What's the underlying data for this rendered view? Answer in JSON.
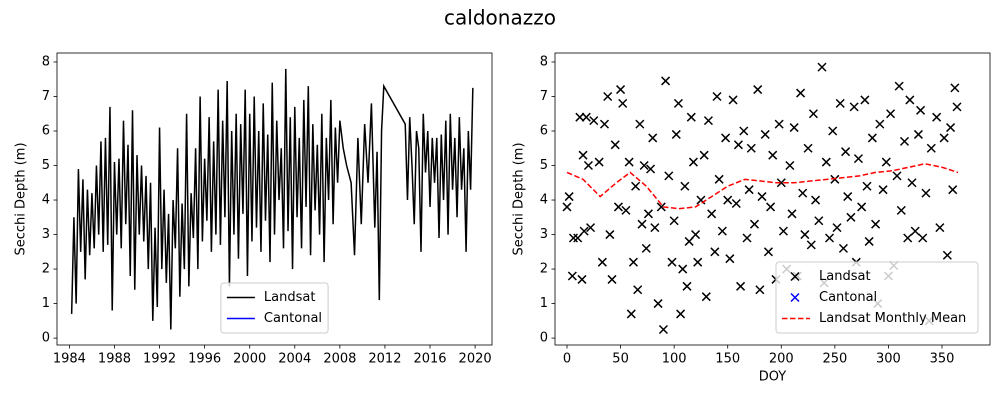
{
  "title": "caldonazzo",
  "chart_data": [
    {
      "type": "line",
      "ylabel": "Secchi Depth (m)",
      "xlim": [
        1982.9,
        2021.5
      ],
      "ylim": [
        -0.2,
        8.26
      ],
      "xticks": [
        1984,
        1988,
        1992,
        1996,
        2000,
        2004,
        2008,
        2012,
        2016,
        2020
      ],
      "yticks": [
        0,
        1,
        2,
        3,
        4,
        5,
        6,
        7,
        8
      ],
      "legend": "lower center",
      "series": [
        {
          "name": "Landsat",
          "color": "#000000",
          "x": [
            1984.2,
            1984.4,
            1984.6,
            1984.8,
            1985.0,
            1985.2,
            1985.4,
            1985.6,
            1985.8,
            1986.0,
            1986.2,
            1986.4,
            1986.6,
            1986.8,
            1987.0,
            1987.2,
            1987.4,
            1987.6,
            1987.8,
            1988.0,
            1988.2,
            1988.4,
            1988.6,
            1988.8,
            1989.0,
            1989.2,
            1989.4,
            1989.6,
            1989.8,
            1990.0,
            1990.2,
            1990.4,
            1990.6,
            1990.8,
            1991.0,
            1991.2,
            1991.4,
            1991.6,
            1991.8,
            1992.0,
            1992.2,
            1992.4,
            1992.6,
            1992.8,
            1993.0,
            1993.2,
            1993.4,
            1993.6,
            1993.8,
            1994.0,
            1994.2,
            1994.4,
            1994.6,
            1994.8,
            1995.0,
            1995.2,
            1995.4,
            1995.6,
            1995.8,
            1996.0,
            1996.2,
            1996.4,
            1996.6,
            1996.8,
            1997.0,
            1997.2,
            1997.4,
            1997.6,
            1997.8,
            1998.0,
            1998.2,
            1998.4,
            1998.6,
            1998.8,
            1999.0,
            1999.2,
            1999.4,
            1999.6,
            1999.8,
            2000.0,
            2000.2,
            2000.4,
            2000.6,
            2000.8,
            2001.0,
            2001.2,
            2001.4,
            2001.6,
            2001.8,
            2002.0,
            2002.2,
            2002.4,
            2002.6,
            2002.8,
            2003.0,
            2003.2,
            2003.4,
            2003.6,
            2003.8,
            2004.0,
            2004.2,
            2004.4,
            2004.6,
            2004.8,
            2005.0,
            2005.2,
            2005.4,
            2005.6,
            2005.8,
            2006.0,
            2006.2,
            2006.4,
            2006.6,
            2006.8,
            2007.0,
            2007.2,
            2007.4,
            2007.6,
            2007.8,
            2008.0,
            2008.3,
            2008.6,
            2009.0,
            2009.3,
            2009.6,
            2009.9,
            2010.2,
            2010.5,
            2010.8,
            2011.1,
            2011.3,
            2011.5,
            2011.7,
            2011.9,
            2013.8,
            2014.0,
            2014.2,
            2014.4,
            2014.6,
            2014.8,
            2015.0,
            2015.2,
            2015.4,
            2015.6,
            2015.8,
            2016.0,
            2016.2,
            2016.4,
            2016.6,
            2016.8,
            2017.0,
            2017.2,
            2017.4,
            2017.6,
            2017.8,
            2018.0,
            2018.2,
            2018.4,
            2018.6,
            2018.8,
            2019.0,
            2019.2,
            2019.4,
            2019.6,
            2019.8
          ],
          "values": [
            0.7,
            3.5,
            1.0,
            4.9,
            2.5,
            4.6,
            1.7,
            4.3,
            2.4,
            4.2,
            2.6,
            5.0,
            3.0,
            5.7,
            2.5,
            5.8,
            2.7,
            6.7,
            0.8,
            5.1,
            3.0,
            5.2,
            2.6,
            6.3,
            3.3,
            5.6,
            1.8,
            6.6,
            1.4,
            5.3,
            3.0,
            5.0,
            2.8,
            4.7,
            2.0,
            4.5,
            0.5,
            3.2,
            0.9,
            6.1,
            2.0,
            4.3,
            1.6,
            3.6,
            0.25,
            4.0,
            2.6,
            5.5,
            1.2,
            3.9,
            2.0,
            6.5,
            1.5,
            4.2,
            2.9,
            5.5,
            2.0,
            7.0,
            2.8,
            5.2,
            3.4,
            6.4,
            2.5,
            5.7,
            3.0,
            7.2,
            2.7,
            6.3,
            3.5,
            7.45,
            1.5,
            6.0,
            3.0,
            6.5,
            2.3,
            6.2,
            3.6,
            7.2,
            1.8,
            6.5,
            2.8,
            7.0,
            3.2,
            6.0,
            2.5,
            6.8,
            3.4,
            5.9,
            2.2,
            7.4,
            3.0,
            6.3,
            4.0,
            5.5,
            2.6,
            7.8,
            3.1,
            6.4,
            2.0,
            6.7,
            3.5,
            5.8,
            2.6,
            6.9,
            3.8,
            7.3,
            2.4,
            6.2,
            3.7,
            5.6,
            3.0,
            6.5,
            2.2,
            5.8,
            4.0,
            6.9,
            3.3,
            6.1,
            4.5,
            6.3,
            5.5,
            5.0,
            4.5,
            2.4,
            5.8,
            3.3,
            6.2,
            4.5,
            6.8,
            3.2,
            5.4,
            1.1,
            6.0,
            7.3,
            6.2,
            4.0,
            6.4,
            5.0,
            3.3,
            6.0,
            5.5,
            2.5,
            6.5,
            4.8,
            6.0,
            3.8,
            5.8,
            4.5,
            5.8,
            2.9,
            5.9,
            4.0,
            6.3,
            3.0,
            6.5,
            4.3,
            5.8,
            3.5,
            6.4,
            4.3,
            5.5,
            2.5,
            6.0,
            4.3,
            7.25
          ]
        },
        {
          "name": "Cantonal",
          "color": "#0000ff",
          "x": [],
          "values": []
        }
      ]
    },
    {
      "type": "scatter",
      "xlabel": "DOY",
      "ylabel": "Secchi Depth (m)",
      "xlim": [
        -11.2,
        394.8
      ],
      "ylim": [
        -0.2,
        8.26
      ],
      "xticks": [
        0,
        50,
        100,
        150,
        200,
        250,
        300,
        350
      ],
      "yticks": [
        0,
        1,
        2,
        3,
        4,
        5,
        6,
        7,
        8
      ],
      "legend": "lower right",
      "series": [
        {
          "name": "Landsat",
          "color": "#000000",
          "marker": "x",
          "x": [
            0,
            2,
            5,
            6,
            10,
            12,
            14,
            15,
            16,
            18,
            20,
            22,
            25,
            30,
            33,
            35,
            38,
            40,
            42,
            45,
            48,
            50,
            52,
            55,
            58,
            60,
            62,
            64,
            66,
            68,
            70,
            72,
            74,
            76,
            78,
            80,
            82,
            85,
            88,
            90,
            92,
            95,
            98,
            100,
            102,
            104,
            106,
            108,
            110,
            112,
            114,
            116,
            118,
            120,
            122,
            125,
            128,
            130,
            132,
            135,
            138,
            140,
            142,
            145,
            148,
            150,
            152,
            155,
            158,
            160,
            162,
            165,
            168,
            170,
            172,
            175,
            178,
            180,
            182,
            185,
            188,
            190,
            192,
            195,
            198,
            200,
            202,
            205,
            208,
            210,
            212,
            215,
            218,
            220,
            222,
            225,
            228,
            230,
            232,
            235,
            238,
            240,
            242,
            245,
            248,
            250,
            252,
            255,
            258,
            260,
            262,
            265,
            268,
            270,
            272,
            275,
            278,
            280,
            282,
            285,
            288,
            290,
            292,
            295,
            298,
            300,
            302,
            305,
            308,
            310,
            312,
            315,
            318,
            320,
            322,
            325,
            328,
            330,
            332,
            335,
            338,
            340,
            345,
            348,
            352,
            355,
            358,
            360,
            362,
            364
          ],
          "values": [
            3.8,
            4.1,
            1.8,
            2.9,
            2.9,
            6.4,
            1.7,
            5.3,
            3.1,
            6.4,
            5.0,
            3.2,
            6.3,
            5.1,
            2.2,
            6.2,
            7.0,
            3.0,
            1.7,
            5.6,
            3.8,
            7.2,
            6.8,
            3.7,
            5.1,
            0.7,
            2.2,
            4.4,
            1.4,
            6.2,
            3.3,
            5.0,
            2.6,
            3.6,
            4.9,
            5.8,
            3.2,
            1.0,
            3.8,
            0.25,
            7.45,
            4.7,
            2.2,
            3.4,
            5.9,
            6.8,
            0.7,
            2.0,
            4.4,
            1.5,
            2.8,
            6.4,
            5.1,
            3.0,
            2.2,
            4.0,
            5.3,
            1.2,
            6.3,
            3.6,
            2.5,
            7.0,
            4.6,
            3.1,
            5.8,
            4.0,
            2.3,
            6.9,
            3.9,
            5.6,
            1.5,
            6.0,
            2.9,
            4.3,
            5.5,
            3.3,
            7.2,
            1.4,
            4.1,
            5.9,
            2.5,
            3.8,
            5.3,
            1.7,
            6.2,
            4.5,
            3.1,
            2.0,
            5.0,
            3.6,
            6.1,
            1.8,
            7.1,
            4.2,
            3.0,
            5.5,
            2.7,
            6.5,
            4.0,
            3.4,
            7.85,
            1.6,
            5.1,
            2.9,
            6.0,
            4.6,
            3.2,
            6.8,
            2.6,
            5.4,
            4.1,
            3.5,
            6.7,
            2.2,
            5.2,
            3.8,
            6.9,
            4.4,
            2.8,
            5.8,
            3.3,
            1.0,
            6.2,
            4.3,
            5.1,
            1.8,
            6.5,
            2.1,
            4.7,
            7.3,
            3.7,
            5.7,
            2.9,
            6.9,
            4.5,
            3.1,
            5.9,
            6.6,
            2.9,
            4.2,
            0.5,
            5.5,
            6.4,
            3.2,
            5.8,
            2.4,
            6.1,
            4.3,
            7.25,
            6.7
          ]
        },
        {
          "name": "Cantonal",
          "color": "#0000ff",
          "marker": "x",
          "x": [],
          "values": []
        },
        {
          "name": "Landsat Monthly Mean",
          "color": "#ff0000",
          "marker": "line",
          "linestyle": "dashed",
          "x": [
            0,
            15,
            31,
            46,
            59,
            74,
            90,
            105,
            120,
            135,
            150,
            166,
            181,
            196,
            212,
            227,
            243,
            258,
            273,
            288,
            304,
            319,
            334,
            350,
            365
          ],
          "values": [
            4.8,
            4.6,
            4.1,
            4.5,
            4.8,
            4.4,
            3.8,
            3.75,
            3.8,
            4.1,
            4.4,
            4.6,
            4.55,
            4.5,
            4.5,
            4.55,
            4.6,
            4.65,
            4.7,
            4.8,
            4.85,
            4.95,
            5.05,
            4.95,
            4.8
          ]
        }
      ]
    }
  ]
}
